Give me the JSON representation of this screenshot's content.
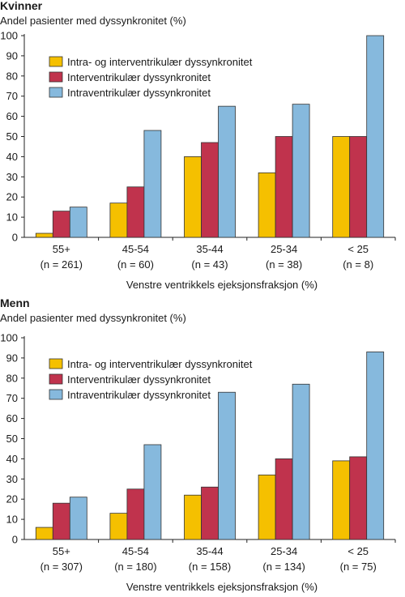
{
  "chart_data": [
    {
      "type": "bar",
      "title": "Kvinner",
      "ylabel": "Andel pasienter med dyssynkronitet (%)",
      "xlabel": "Venstre ventrikkels ejeksjonsfraksjon (%)",
      "categories": [
        "55+",
        "45-54",
        "35-44",
        "25-34",
        "< 25"
      ],
      "category_counts": [
        "(n = 261)",
        "(n = 60)",
        "(n = 43)",
        "(n = 38)",
        "(n = 8)"
      ],
      "ylim": [
        0,
        100
      ],
      "yticks": [
        0,
        10,
        20,
        30,
        40,
        50,
        60,
        70,
        80,
        90,
        100
      ],
      "legend_position": "top-left",
      "series": [
        {
          "name": "Intra- og interventrikulær dyssynkronitet",
          "color": "#F5C000",
          "values": [
            2,
            17,
            40,
            32,
            50
          ]
        },
        {
          "name": "Interventrikulær dyssynkronitet",
          "color": "#C0334D",
          "values": [
            13,
            25,
            47,
            50,
            50
          ]
        },
        {
          "name": "Intraventrikulær dyssynkronitet",
          "color": "#86B9DD",
          "values": [
            15,
            53,
            65,
            66,
            100
          ]
        }
      ]
    },
    {
      "type": "bar",
      "title": "Menn",
      "ylabel": "Andel pasienter med dyssynkronitet (%)",
      "xlabel": "Venstre ventrikkels ejeksjonsfraksjon (%)",
      "categories": [
        "55+",
        "45-54",
        "35-44",
        "25-34",
        "< 25"
      ],
      "category_counts": [
        "(n = 307)",
        "(n = 180)",
        "(n = 158)",
        "(n = 134)",
        "(n = 75)"
      ],
      "ylim": [
        0,
        100
      ],
      "yticks": [
        0,
        10,
        20,
        30,
        40,
        50,
        60,
        70,
        80,
        90,
        100
      ],
      "legend_position": "top-left",
      "series": [
        {
          "name": "Intra- og interventrikulær dyssynkronitet",
          "color": "#F5C000",
          "values": [
            6,
            13,
            22,
            32,
            39
          ]
        },
        {
          "name": "Interventrikulær dyssynkronitet",
          "color": "#C0334D",
          "values": [
            18,
            25,
            26,
            40,
            41
          ]
        },
        {
          "name": "Intraventrikulær dyssynkronitet",
          "color": "#86B9DD",
          "values": [
            21,
            47,
            73,
            77,
            93
          ]
        }
      ]
    }
  ]
}
